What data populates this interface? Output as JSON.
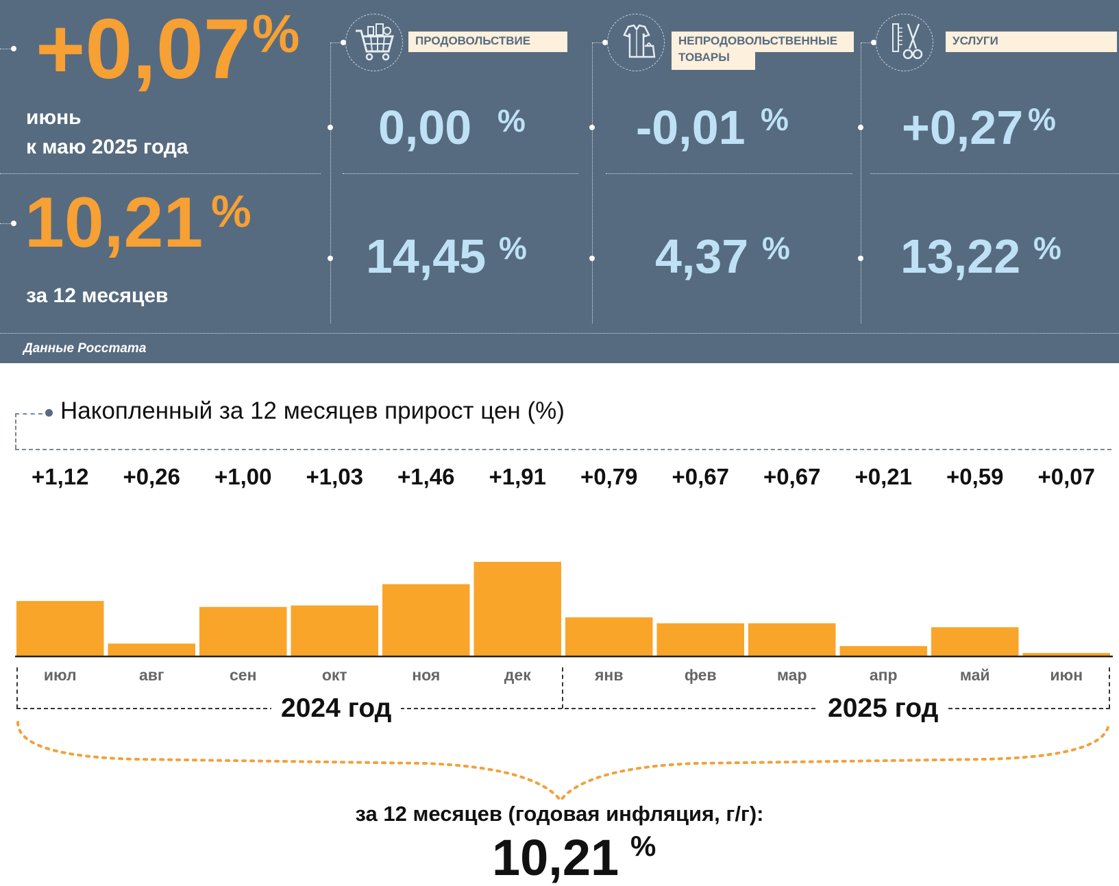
{
  "header": {
    "monthly": {
      "value": "+0,07",
      "pct": "%",
      "line1": "июнь",
      "line2": "к маю 2025 года"
    },
    "annual": {
      "value": "10,21",
      "pct": "%",
      "label": "за 12 месяцев"
    },
    "source": "Данные Росстата",
    "categories": [
      {
        "name": "ПРОДОВОЛЬСТВИЕ",
        "icon": "shopping-cart-icon",
        "monthly": "0,00",
        "annual": "14,45",
        "pct": "%"
      },
      {
        "name_line1": "НЕПРОДОВОЛЬСТВЕННЫЕ",
        "name_line2": "ТОВАРЫ",
        "icon": "clothes-bag-icon",
        "monthly": "-0,01",
        "annual": "4,37",
        "pct": "%"
      },
      {
        "name": "УСЛУГИ",
        "icon": "comb-scissors-icon",
        "monthly": "+0,27",
        "annual": "13,22",
        "pct": "%"
      }
    ],
    "colors": {
      "panel": "#566b80",
      "accent_orange": "#f7a033",
      "value_blue": "#bfe1f6",
      "label_bg": "#fdf0dc"
    }
  },
  "chart_data": {
    "type": "bar",
    "title": "Накопленный за 12 месяцев прирост цен (%)",
    "categories": [
      "июл",
      "авг",
      "сен",
      "окт",
      "ноя",
      "дек",
      "янв",
      "фев",
      "мар",
      "апр",
      "май",
      "июн"
    ],
    "values": [
      1.12,
      0.26,
      1.0,
      1.03,
      1.46,
      1.91,
      0.79,
      0.67,
      0.67,
      0.21,
      0.59,
      0.07
    ],
    "value_labels": [
      "+1,12",
      "+0,26",
      "+1,00",
      "+1,03",
      "+1,46",
      "+1,91",
      "+0,79",
      "+0,67",
      "+0,67",
      "+0,21",
      "+0,59",
      "+0,07"
    ],
    "year_groups": [
      "2024 год",
      "2025 год"
    ],
    "summary_label": "за 12 месяцев (годовая инфляция, г/г):",
    "summary_value": "10,21",
    "summary_pct": "%",
    "bar_color": "#f9a52a",
    "ylim": [
      0,
      1.91
    ]
  }
}
